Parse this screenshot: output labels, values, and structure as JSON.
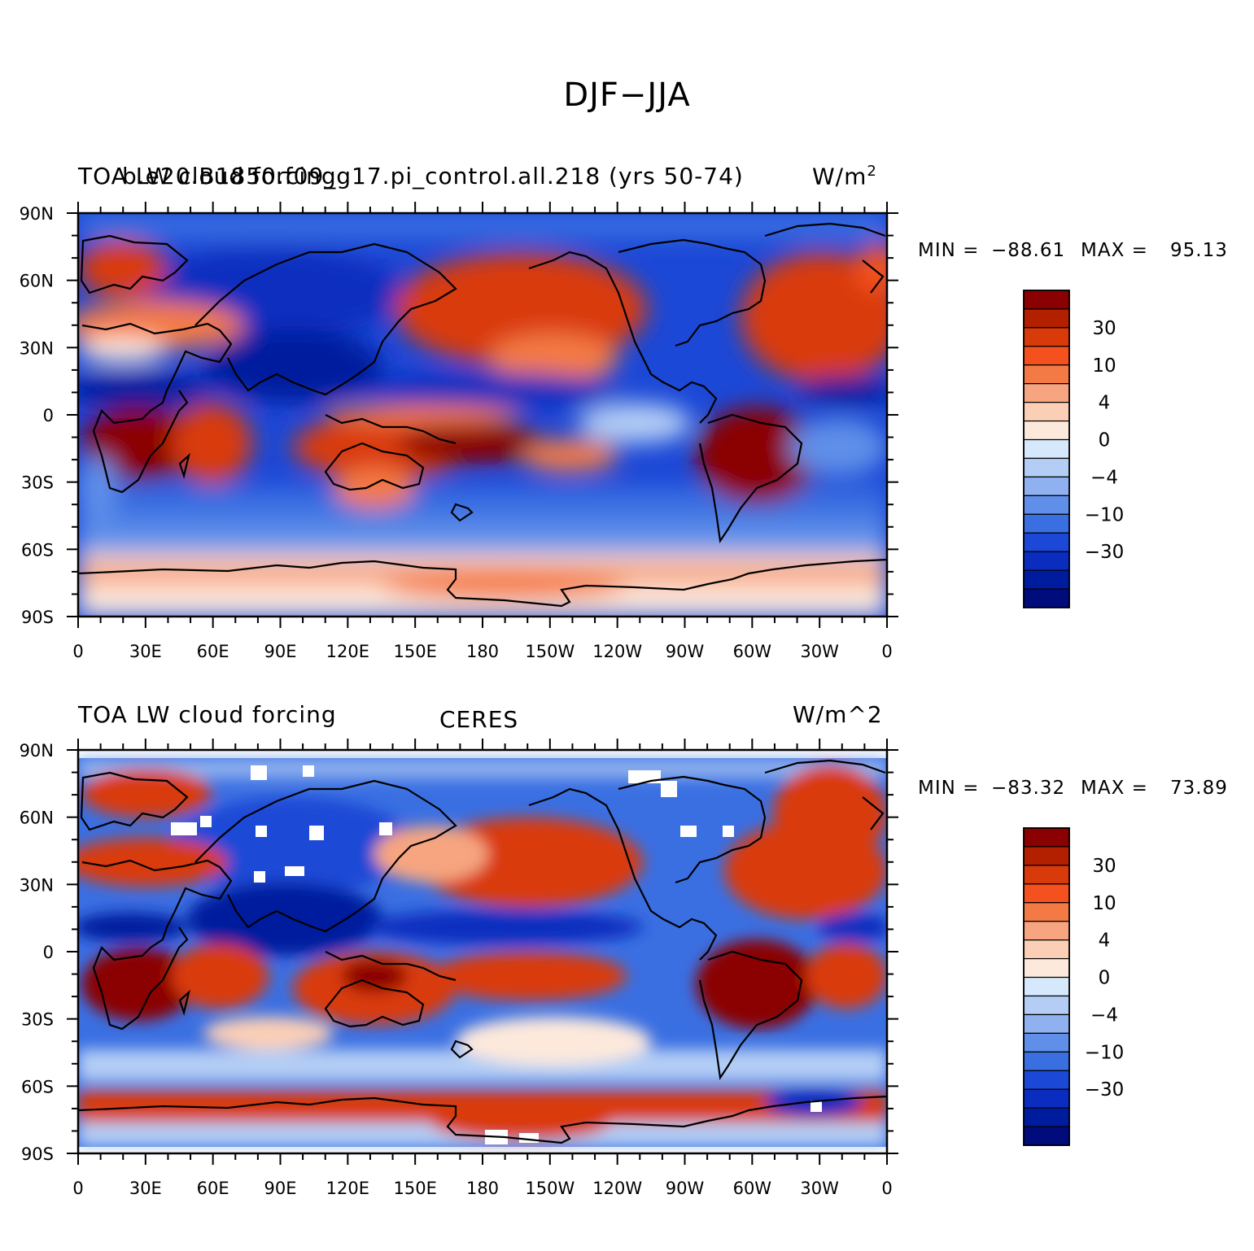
{
  "figure_title": "DJF−JJA",
  "x_tick_labels": [
    "0",
    "30E",
    "60E",
    "90E",
    "120E",
    "150E",
    "180",
    "150W",
    "120W",
    "90W",
    "60W",
    "30W",
    "0"
  ],
  "y_tick_labels": [
    "90N",
    "60N",
    "30N",
    "0",
    "30S",
    "60S",
    "90S"
  ],
  "colorbar": {
    "labels": [
      "30",
      "10",
      "4",
      "0",
      "−4",
      "−10",
      "−30"
    ],
    "colors": [
      "#8b0000",
      "#b22000",
      "#d93a0a",
      "#f4511e",
      "#f47a45",
      "#f6a580",
      "#fbcfb6",
      "#fde9dc",
      "#d6e8fb",
      "#b3cdf5",
      "#8fb1ef",
      "#5f8fe9",
      "#3a6fe2",
      "#1b48d6",
      "#0a2dbf",
      "#001c9e",
      "#000b7c"
    ]
  },
  "panels": [
    {
      "left_title": "TOA LW cloud forcing",
      "center_title": "b.e20.B1850.f09_g17.pi_control.all.218 (yrs 50-74)",
      "units": "W/m",
      "units_sup": "2",
      "min_label": "MIN =",
      "min_value": "−88.61",
      "max_label": "MAX =",
      "max_value": "95.13"
    },
    {
      "left_title": "TOA LW cloud forcing",
      "center_title": "CERES",
      "units": "W/m^2",
      "units_sup": "",
      "min_label": "MIN =",
      "min_value": "−83.32",
      "max_label": "MAX =",
      "max_value": "73.89"
    }
  ]
}
